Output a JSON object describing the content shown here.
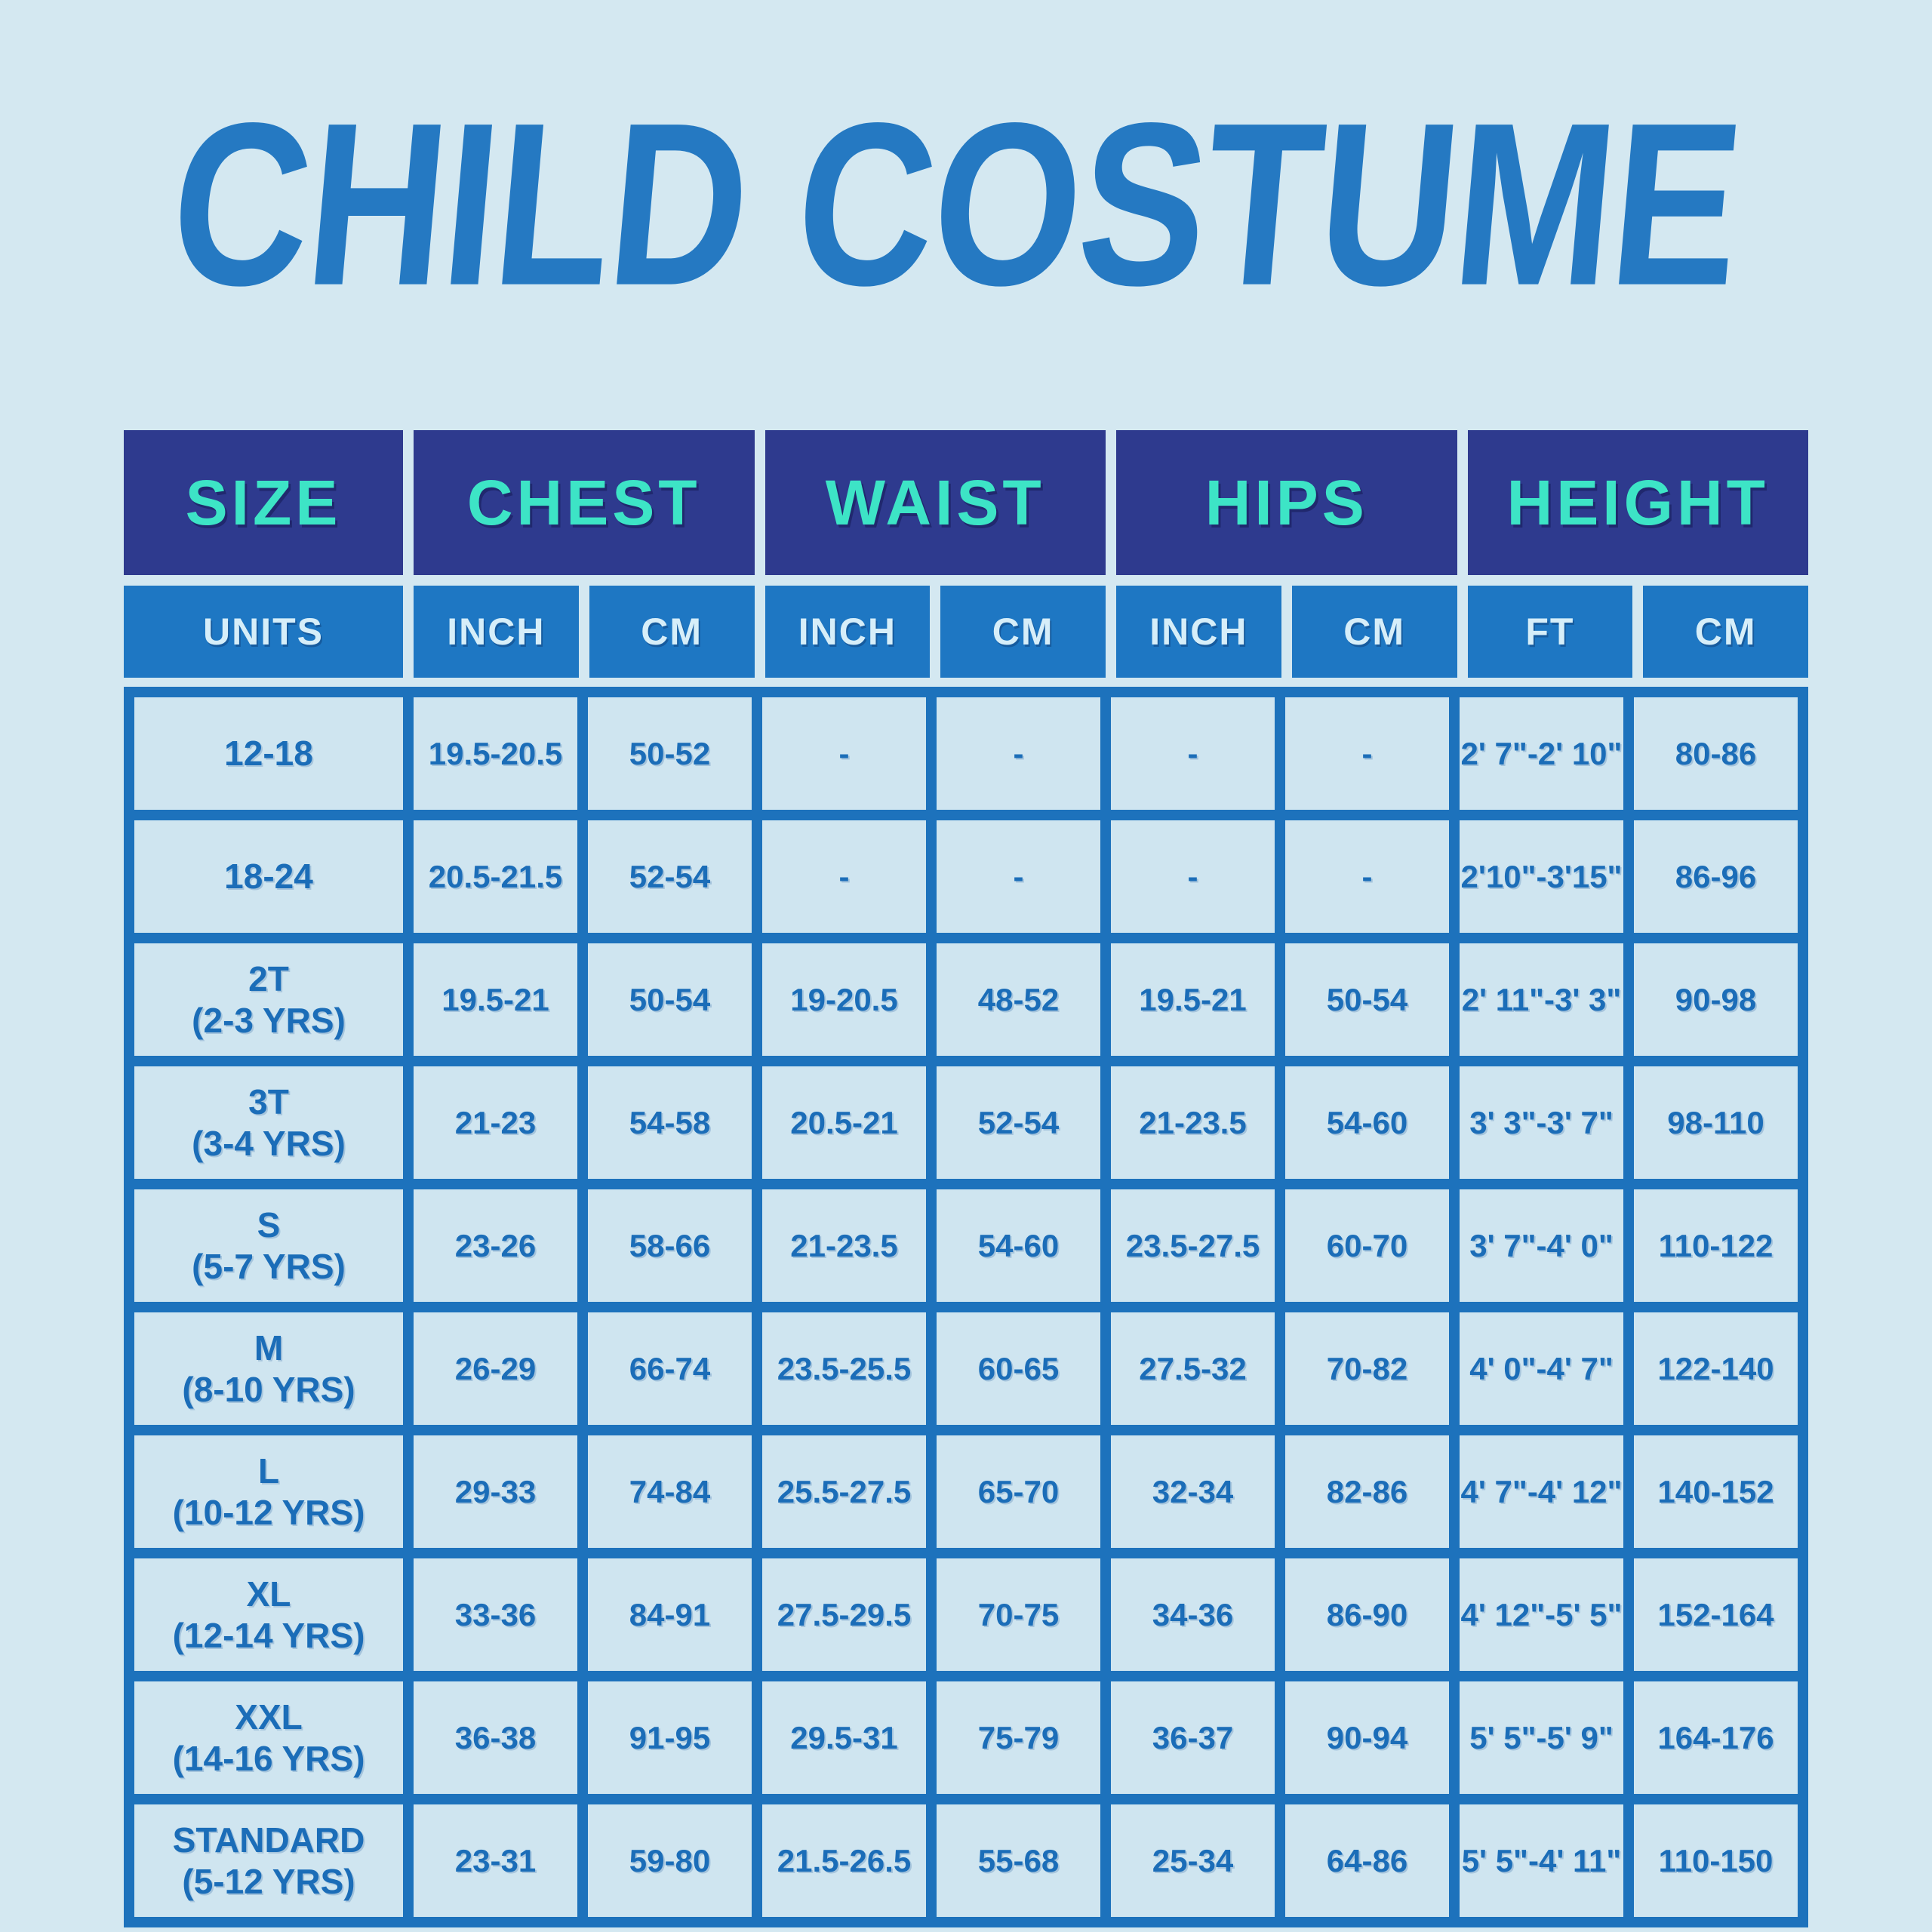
{
  "colors": {
    "background": "#d4e8f1",
    "title_blue": "#2579c2",
    "header_navy": "#2e3a8e",
    "header_teal": "#3de4c6",
    "units_blue": "#1e77c3",
    "units_text": "#d6eef9",
    "grid_blue": "#1d72bc",
    "cell_bg": "#cfe5f0",
    "cell_text": "#1b6db8"
  },
  "chart_data": {
    "type": "table",
    "title": "CHILD COSTUME",
    "header_groups": [
      "SIZE",
      "CHEST",
      "WAIST",
      "HIPS",
      "HEIGHT"
    ],
    "unit_row": [
      "UNITS",
      "INCH",
      "CM",
      "INCH",
      "CM",
      "INCH",
      "CM",
      "FT",
      "CM"
    ],
    "rows": [
      {
        "size": "12-18",
        "age": "",
        "values": [
          "19.5-20.5",
          "50-52",
          "-",
          "-",
          "-",
          "-",
          "2' 7\"-2' 10\"",
          "80-86"
        ]
      },
      {
        "size": "18-24",
        "age": "",
        "values": [
          "20.5-21.5",
          "52-54",
          "-",
          "-",
          "-",
          "-",
          "2'10\"-3'15\"",
          "86-96"
        ]
      },
      {
        "size": "2T",
        "age": "(2-3 YRS)",
        "values": [
          "19.5-21",
          "50-54",
          "19-20.5",
          "48-52",
          "19.5-21",
          "50-54",
          "2' 11\"-3' 3\"",
          "90-98"
        ]
      },
      {
        "size": "3T",
        "age": "(3-4 YRS)",
        "values": [
          "21-23",
          "54-58",
          "20.5-21",
          "52-54",
          "21-23.5",
          "54-60",
          "3' 3\"-3' 7\"",
          "98-110"
        ]
      },
      {
        "size": "S",
        "age": "(5-7 YRS)",
        "values": [
          "23-26",
          "58-66",
          "21-23.5",
          "54-60",
          "23.5-27.5",
          "60-70",
          "3' 7\"-4' 0\"",
          "110-122"
        ]
      },
      {
        "size": "M",
        "age": "(8-10 YRS)",
        "values": [
          "26-29",
          "66-74",
          "23.5-25.5",
          "60-65",
          "27.5-32",
          "70-82",
          "4' 0\"-4' 7\"",
          "122-140"
        ]
      },
      {
        "size": "L",
        "age": "(10-12 YRS)",
        "values": [
          "29-33",
          "74-84",
          "25.5-27.5",
          "65-70",
          "32-34",
          "82-86",
          "4' 7\"-4' 12\"",
          "140-152"
        ]
      },
      {
        "size": "XL",
        "age": "(12-14 YRS)",
        "values": [
          "33-36",
          "84-91",
          "27.5-29.5",
          "70-75",
          "34-36",
          "86-90",
          "4' 12\"-5' 5\"",
          "152-164"
        ]
      },
      {
        "size": "XXL",
        "age": "(14-16 YRS)",
        "values": [
          "36-38",
          "91-95",
          "29.5-31",
          "75-79",
          "36-37",
          "90-94",
          "5' 5\"-5' 9\"",
          "164-176"
        ]
      },
      {
        "size": "STANDARD",
        "age": "(5-12 YRS)",
        "values": [
          "23-31",
          "59-80",
          "21.5-26.5",
          "55-68",
          "25-34",
          "64-86",
          "5' 5\"-4' 11\"",
          "110-150"
        ]
      }
    ]
  }
}
